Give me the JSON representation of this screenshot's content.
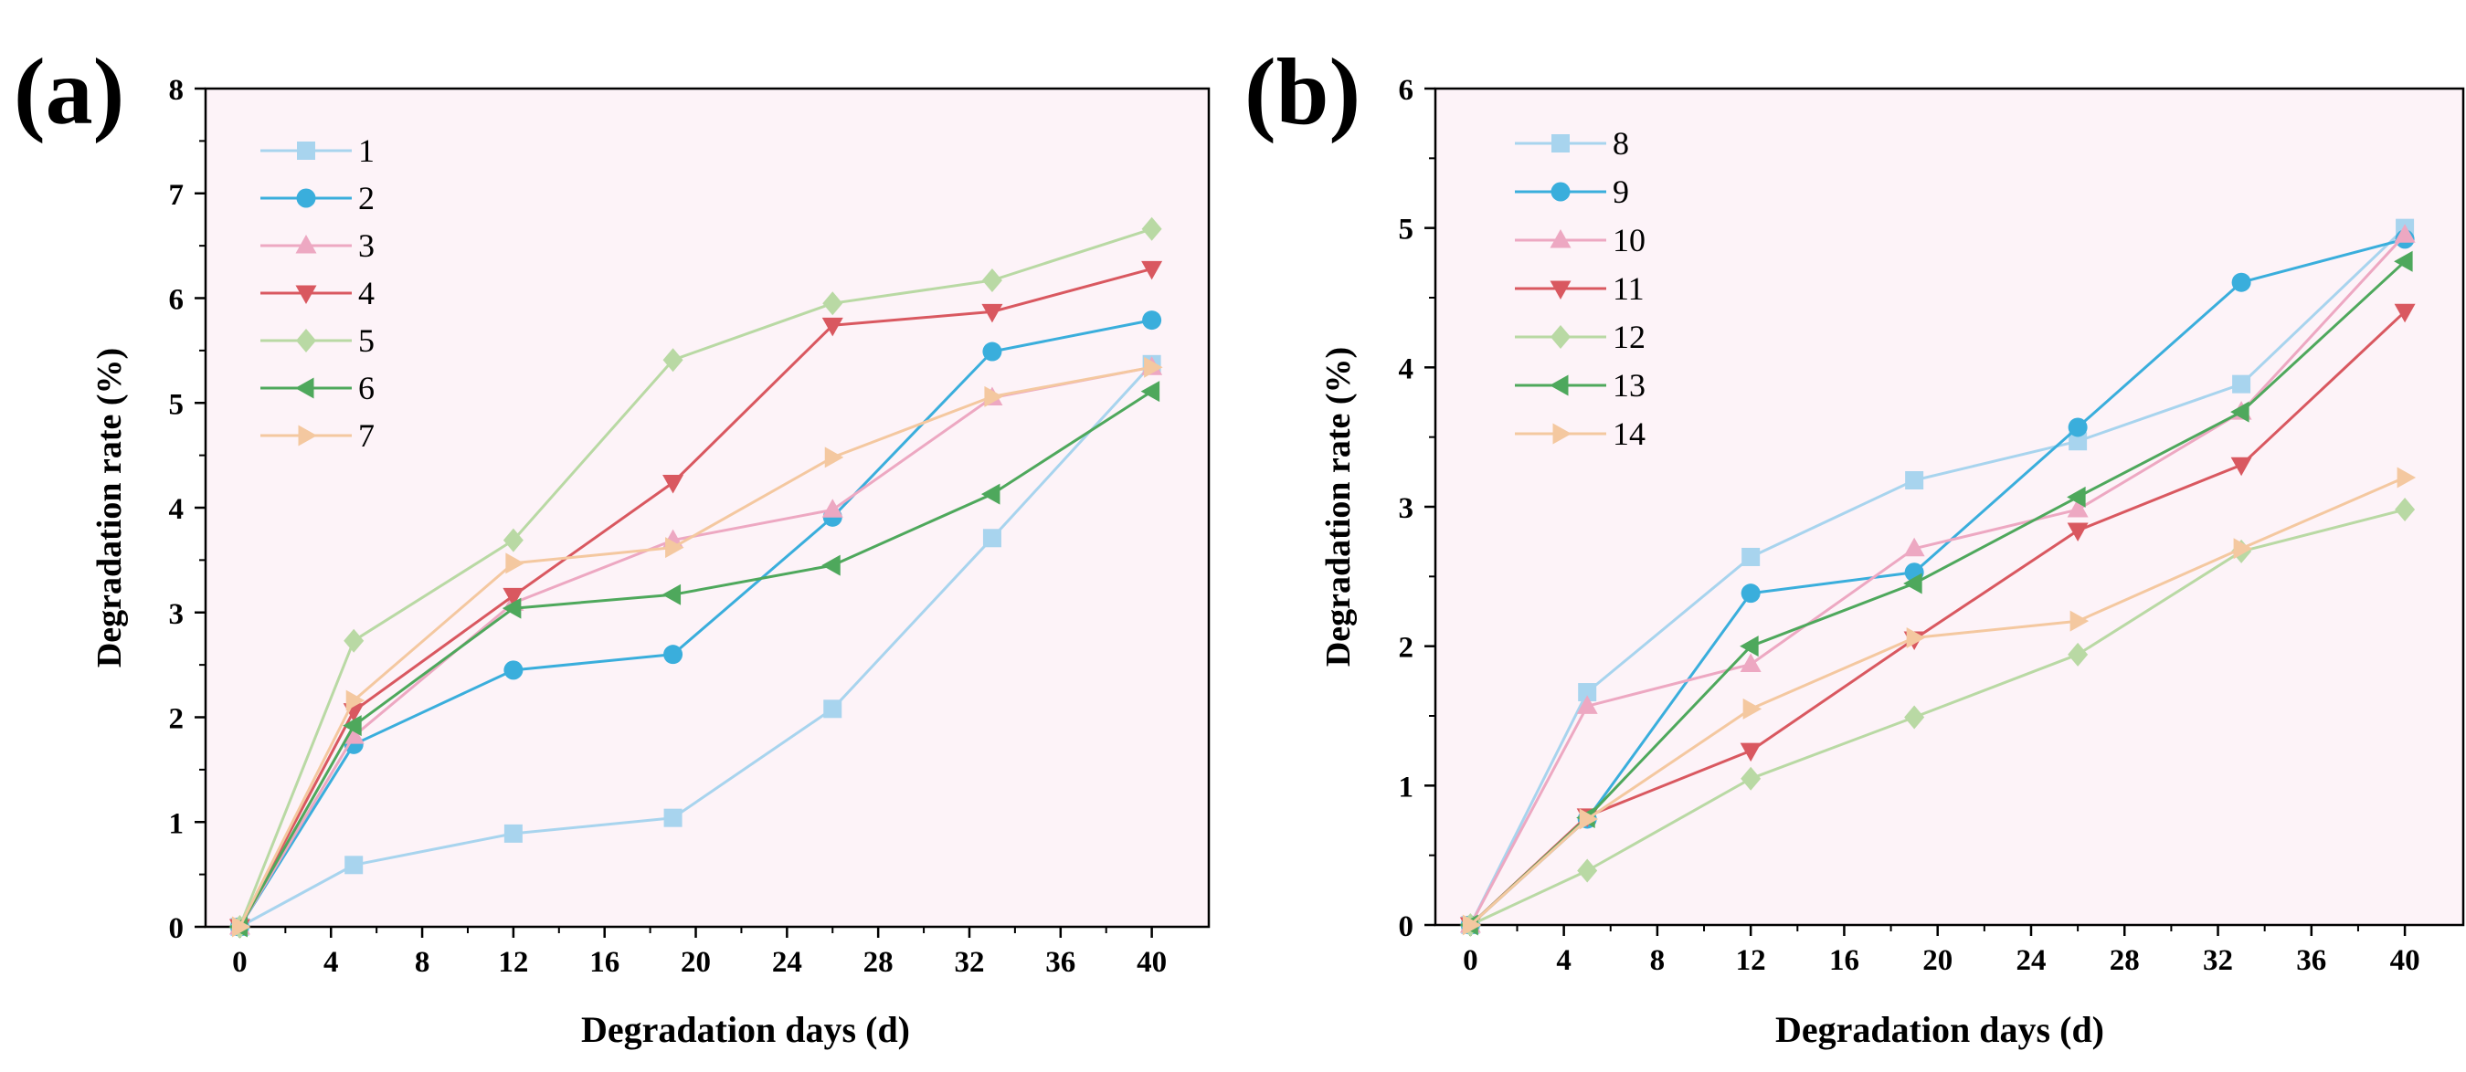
{
  "chart_data": [
    {
      "type": "line",
      "panel_label": "(a)",
      "xlabel": "Degradation days (d)",
      "ylabel": "Degradation rate (%)",
      "xlim": [
        -1.5,
        42.5
      ],
      "ylim": [
        0,
        8
      ],
      "xticks": [
        0,
        4,
        8,
        12,
        16,
        20,
        24,
        28,
        32,
        36,
        40
      ],
      "yticks": [
        0,
        1,
        2,
        3,
        4,
        5,
        6,
        7,
        8
      ],
      "grid": false,
      "legend_position": "top-left",
      "x": [
        0,
        5,
        12,
        19,
        26,
        33,
        40
      ],
      "series": [
        {
          "name": "1",
          "marker": "square",
          "color": "#a8d4ee",
          "values": [
            0,
            0.59,
            0.89,
            1.04,
            2.08,
            3.71,
            5.37
          ]
        },
        {
          "name": "2",
          "marker": "circle",
          "color": "#3aaedc",
          "values": [
            0,
            1.74,
            2.45,
            2.6,
            3.91,
            5.49,
            5.79
          ]
        },
        {
          "name": "3",
          "marker": "triangle-up",
          "color": "#eda8c2",
          "values": [
            0,
            1.82,
            3.09,
            3.69,
            3.98,
            5.05,
            5.34
          ]
        },
        {
          "name": "4",
          "marker": "triangle-down",
          "color": "#d95860",
          "values": [
            0,
            2.06,
            3.16,
            4.24,
            5.74,
            5.87,
            6.28
          ]
        },
        {
          "name": "5",
          "marker": "diamond",
          "color": "#b9d9a4",
          "values": [
            0,
            2.73,
            3.69,
            5.41,
            5.95,
            6.17,
            6.66
          ]
        },
        {
          "name": "6",
          "marker": "triangle-left",
          "color": "#4ea85c",
          "values": [
            0,
            1.92,
            3.04,
            3.17,
            3.45,
            4.13,
            5.11
          ]
        },
        {
          "name": "7",
          "marker": "triangle-right",
          "color": "#f4c8a0",
          "values": [
            0,
            2.16,
            3.47,
            3.62,
            4.48,
            5.06,
            5.34
          ]
        }
      ]
    },
    {
      "type": "line",
      "panel_label": "(b)",
      "xlabel": "Degradation days (d)",
      "ylabel": "Degradation rate (%)",
      "xlim": [
        -1.5,
        42.5
      ],
      "ylim": [
        0,
        6
      ],
      "xticks": [
        0,
        4,
        8,
        12,
        16,
        20,
        24,
        28,
        32,
        36,
        40
      ],
      "yticks": [
        0,
        1,
        2,
        3,
        4,
        5,
        6
      ],
      "grid": false,
      "legend_position": "top-left",
      "x": [
        0,
        5,
        12,
        19,
        26,
        33,
        40
      ],
      "series": [
        {
          "name": "8",
          "marker": "square",
          "color": "#a8d4ee",
          "values": [
            0,
            1.67,
            2.64,
            3.19,
            3.47,
            3.88,
            5.0
          ]
        },
        {
          "name": "9",
          "marker": "circle",
          "color": "#3aaedc",
          "values": [
            0,
            0.76,
            2.38,
            2.53,
            3.57,
            4.61,
            4.92
          ]
        },
        {
          "name": "10",
          "marker": "triangle-up",
          "color": "#eda8c2",
          "values": [
            0,
            1.57,
            1.87,
            2.7,
            2.98,
            3.68,
            4.95
          ]
        },
        {
          "name": "11",
          "marker": "triangle-down",
          "color": "#d95860",
          "values": [
            0,
            0.78,
            1.25,
            2.05,
            2.83,
            3.3,
            4.4
          ]
        },
        {
          "name": "12",
          "marker": "diamond",
          "color": "#b9d9a4",
          "values": [
            0,
            0.39,
            1.05,
            1.49,
            1.94,
            2.68,
            2.98
          ]
        },
        {
          "name": "13",
          "marker": "triangle-left",
          "color": "#4ea85c",
          "values": [
            0,
            0.77,
            2.0,
            2.45,
            3.07,
            3.68,
            4.76
          ]
        },
        {
          "name": "14",
          "marker": "triangle-right",
          "color": "#f4c8a0",
          "values": [
            0,
            0.76,
            1.55,
            2.06,
            2.18,
            2.7,
            3.21
          ]
        }
      ]
    }
  ],
  "style": {
    "plot_background": "#fdf3f8",
    "axis_color": "#000000"
  }
}
